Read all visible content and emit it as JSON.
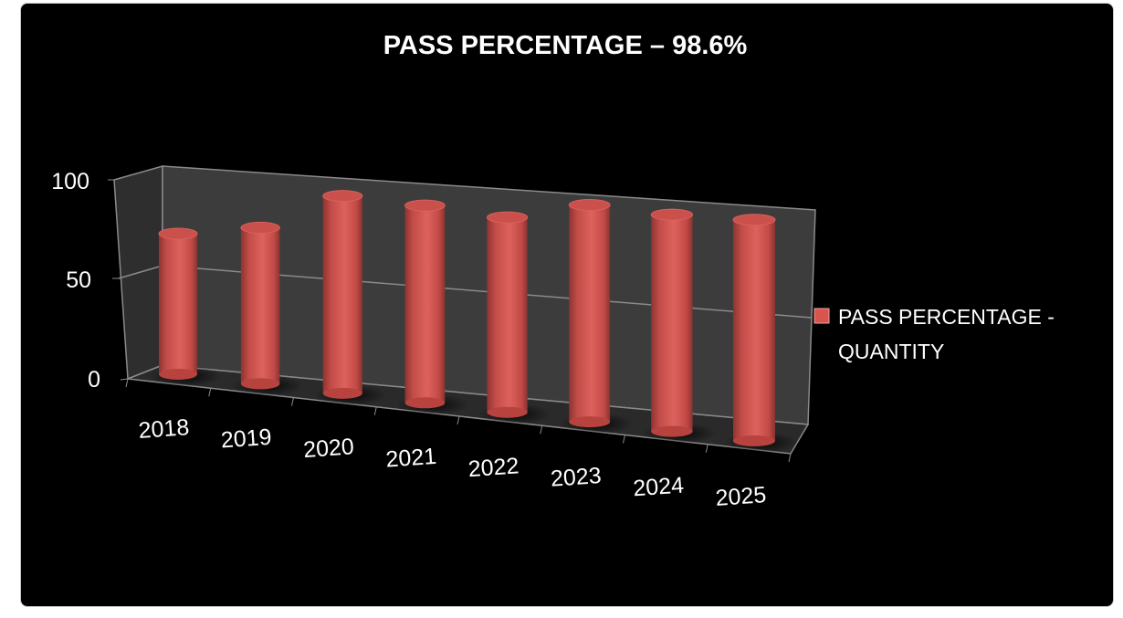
{
  "chart_data": {
    "type": "bar",
    "style": "3d-cylinder",
    "title": "PASS PERCENTAGE – 98.6%",
    "categories": [
      "2018",
      "2019",
      "2020",
      "2021",
      "2022",
      "2023",
      "2024",
      "2025"
    ],
    "series": [
      {
        "name": "PASS PERCENTAGE - QUANTITY",
        "values": [
          70,
          76,
          94,
          92,
          89,
          97,
          95,
          95
        ],
        "color": "#d9534f"
      }
    ],
    "yticks": [
      "0",
      "50",
      "100"
    ],
    "ylim": [
      0,
      100
    ],
    "grid": true,
    "legend": {
      "position": "right",
      "lines": [
        "PASS PERCENTAGE -",
        "QUANTITY"
      ]
    },
    "background": "#000000",
    "wall_color": "#3c3c3c"
  }
}
